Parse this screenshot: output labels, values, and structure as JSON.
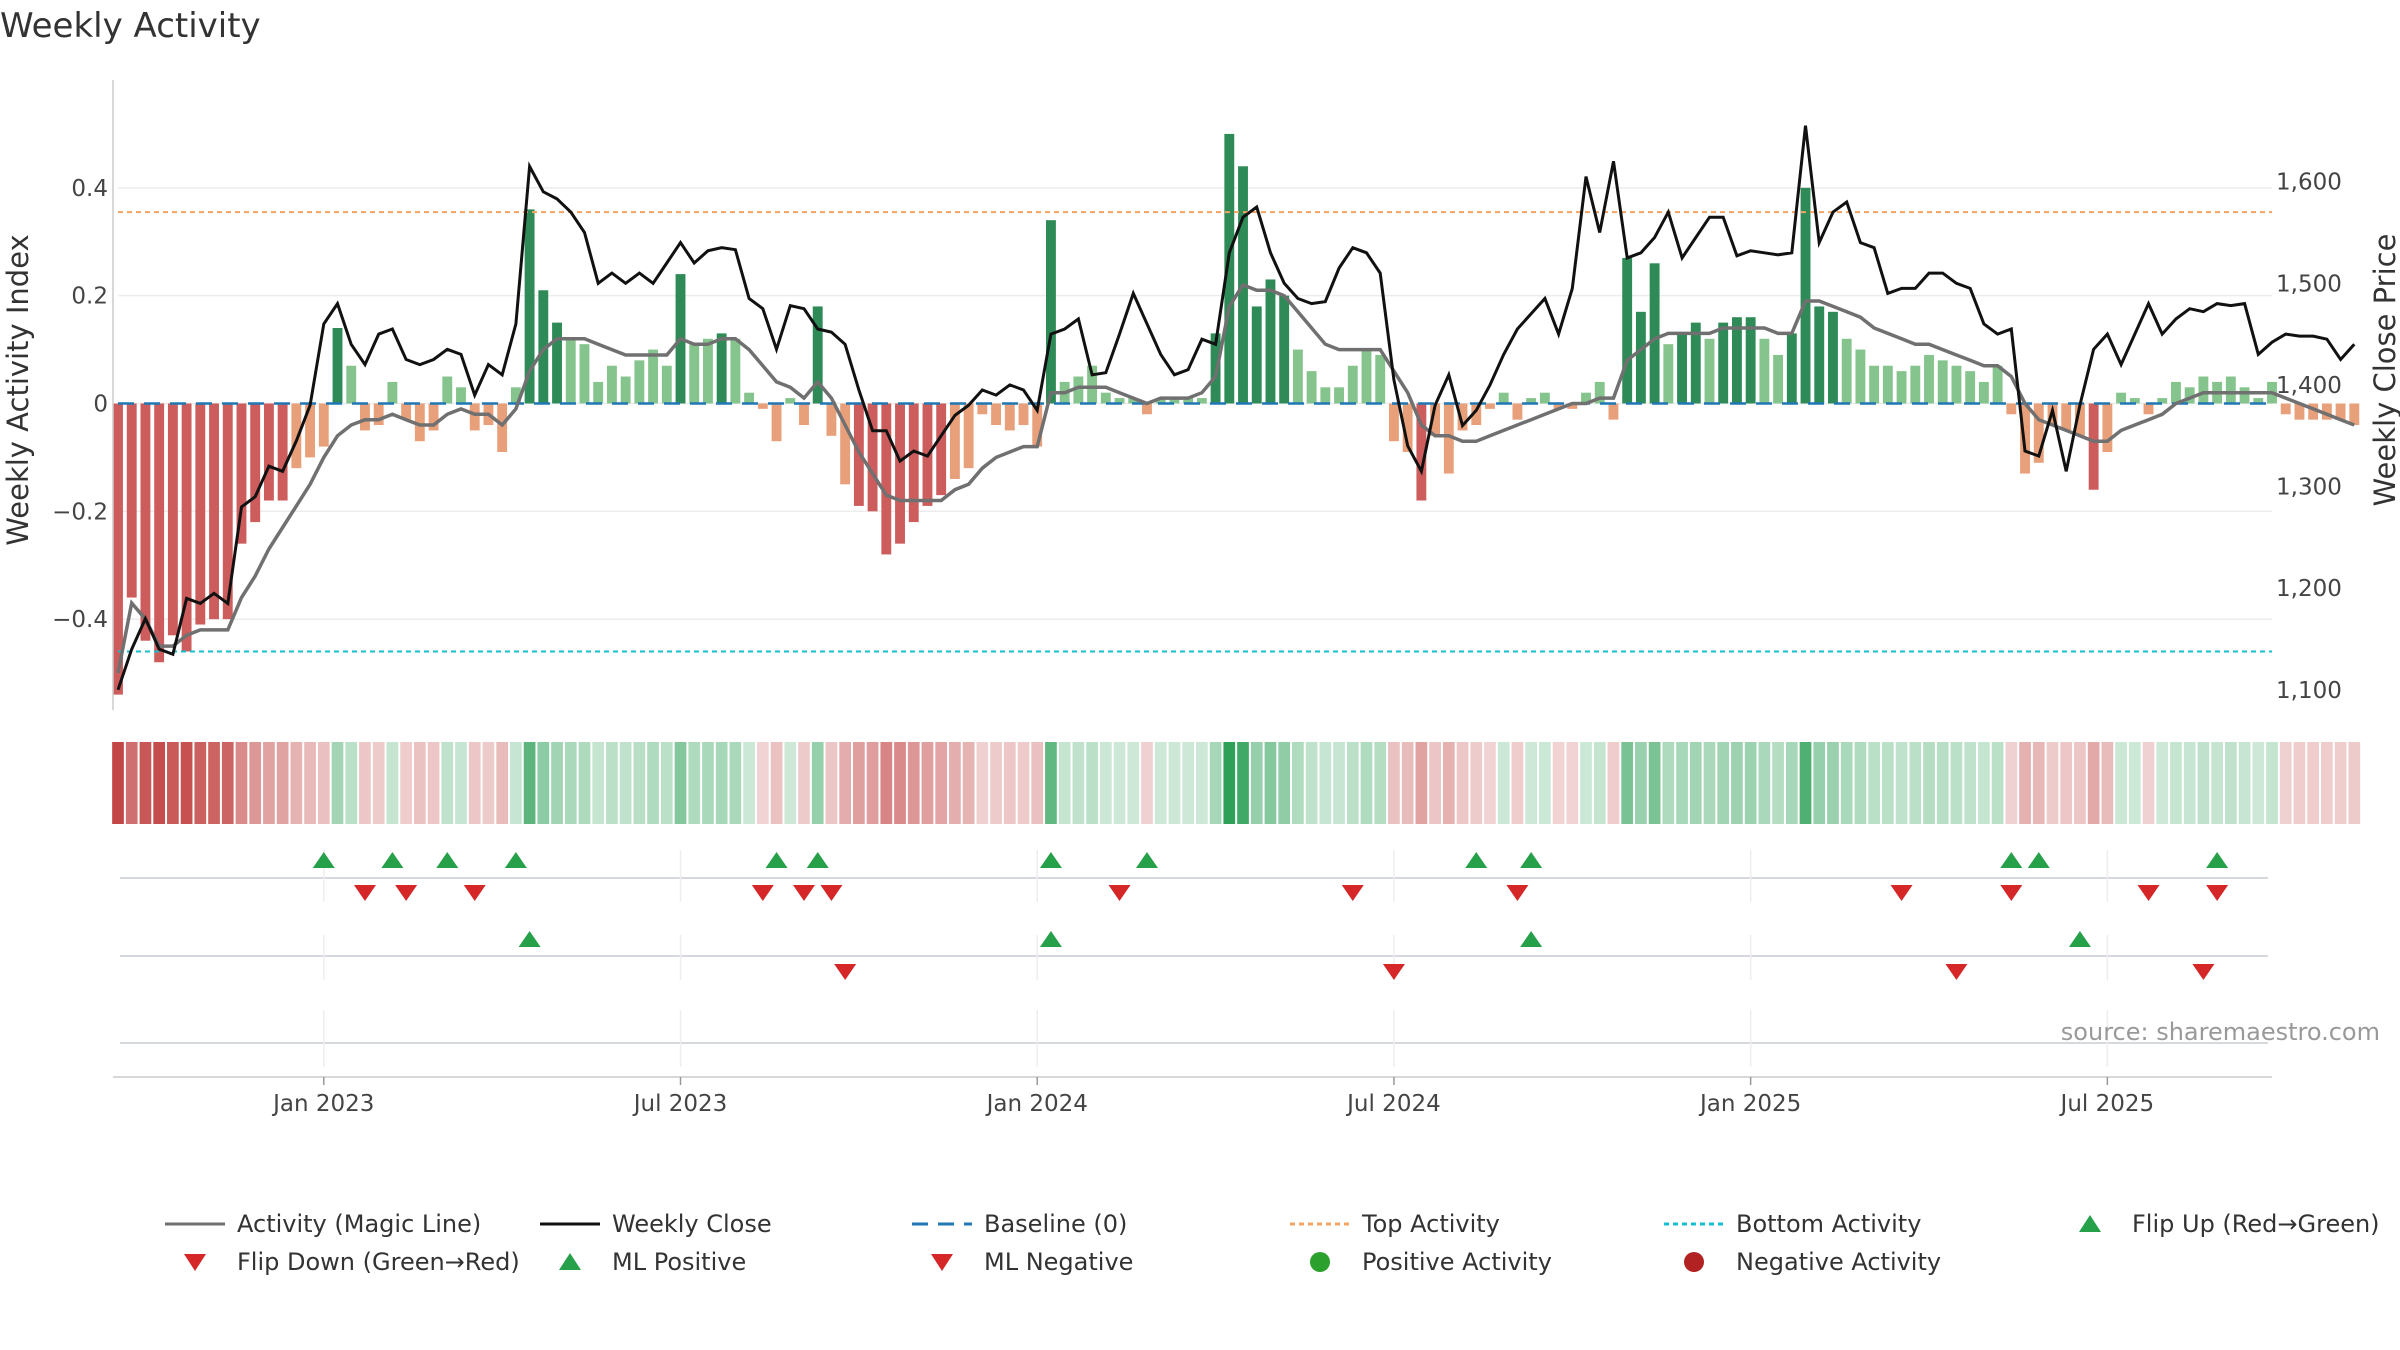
{
  "title": "Weekly Activity",
  "source": "source: sharemaestro.com",
  "colors": {
    "bar_pos_strong": "#2e8b57",
    "bar_pos_weak": "#86c48d",
    "bar_neg_strong": "#cd5c5c",
    "bar_neg_weak": "#e8a07a",
    "magic_line": "#707070",
    "close_line": "#111111",
    "baseline": "#1f77b4",
    "top_line": "#f4a460",
    "bottom_line": "#17becf",
    "marker_up": "#27a04a",
    "marker_down": "#d62728",
    "pos_dot": "#2ca02c",
    "neg_dot": "#b22222"
  },
  "chart_data": {
    "type": "bar+line",
    "title": "Weekly Activity",
    "ylabel": "Weekly Activity Index",
    "y2label": "Weekly Close Price",
    "ylim": [
      -0.55,
      0.6
    ],
    "y2lim": [
      1090,
      1700
    ],
    "yticks": [
      0.4,
      0.2,
      0,
      -0.2,
      -0.4
    ],
    "ytick_labels": [
      "0.4",
      "0.2",
      "0",
      "−0.2",
      "−0.4"
    ],
    "y2ticks": [
      1600,
      1500,
      1400,
      1300,
      1200,
      1100
    ],
    "y2tick_labels": [
      "1,600",
      "1,500",
      "1,400",
      "1,300",
      "1,200",
      "1,100"
    ],
    "x_start_week": 0,
    "x_end_week": 157,
    "xticks": [
      {
        "label": "Jan 2023",
        "week": 15
      },
      {
        "label": "Jul 2023",
        "week": 41
      },
      {
        "label": "Jan 2024",
        "week": 67
      },
      {
        "label": "Jul 2024",
        "week": 93
      },
      {
        "label": "Jan 2025",
        "week": 119
      },
      {
        "label": "Jul 2025",
        "week": 145
      }
    ],
    "top_activity": 0.355,
    "bottom_activity": -0.46,
    "baseline": 0,
    "activity": [
      -0.54,
      -0.36,
      -0.44,
      -0.48,
      -0.43,
      -0.46,
      -0.41,
      -0.4,
      -0.4,
      -0.26,
      -0.22,
      -0.18,
      -0.18,
      -0.12,
      -0.1,
      -0.08,
      0.14,
      0.07,
      -0.05,
      -0.04,
      0.04,
      -0.03,
      -0.07,
      -0.05,
      0.05,
      0.03,
      -0.05,
      -0.04,
      -0.09,
      0.03,
      0.36,
      0.21,
      0.15,
      0.12,
      0.11,
      0.04,
      0.07,
      0.05,
      0.08,
      0.1,
      0.07,
      0.24,
      0.11,
      0.12,
      0.13,
      0.12,
      0.02,
      -0.01,
      -0.07,
      0.01,
      -0.04,
      0.18,
      -0.06,
      -0.15,
      -0.19,
      -0.2,
      -0.28,
      -0.26,
      -0.22,
      -0.19,
      -0.17,
      -0.14,
      -0.12,
      -0.02,
      -0.04,
      -0.05,
      -0.04,
      -0.08,
      0.34,
      0.04,
      0.05,
      0.07,
      0.02,
      0.01,
      0.01,
      -0.02,
      0.01,
      0.01,
      0.01,
      0.01,
      0.13,
      0.5,
      0.44,
      0.18,
      0.23,
      0.2,
      0.1,
      0.06,
      0.03,
      0.03,
      0.07,
      0.1,
      0.09,
      -0.07,
      -0.09,
      -0.18,
      -0.06,
      -0.13,
      -0.05,
      -0.04,
      -0.01,
      0.02,
      -0.03,
      0.01,
      0.02,
      -0.01,
      -0.01,
      0.02,
      0.04,
      -0.03,
      0.27,
      0.17,
      0.26,
      0.11,
      0.13,
      0.15,
      0.12,
      0.15,
      0.16,
      0.16,
      0.12,
      0.09,
      0.13,
      0.4,
      0.18,
      0.17,
      0.12,
      0.1,
      0.07,
      0.07,
      0.06,
      0.07,
      0.09,
      0.08,
      0.07,
      0.06,
      0.04,
      0.07,
      -0.02,
      -0.13,
      -0.11,
      -0.04,
      -0.05,
      -0.06,
      -0.16,
      -0.09,
      0.02,
      0.01,
      -0.02,
      0.01,
      0.04,
      0.03,
      0.05,
      0.04,
      0.05,
      0.03,
      0.01,
      0.04,
      -0.02,
      -0.03,
      -0.03,
      -0.03,
      -0.03,
      -0.04
    ],
    "magic_line": [
      -0.5,
      -0.37,
      -0.4,
      -0.45,
      -0.45,
      -0.43,
      -0.42,
      -0.42,
      -0.42,
      -0.36,
      -0.32,
      -0.27,
      -0.23,
      -0.19,
      -0.15,
      -0.1,
      -0.06,
      -0.04,
      -0.03,
      -0.03,
      -0.02,
      -0.03,
      -0.04,
      -0.04,
      -0.02,
      -0.01,
      -0.02,
      -0.02,
      -0.04,
      -0.01,
      0.06,
      0.1,
      0.12,
      0.12,
      0.12,
      0.11,
      0.1,
      0.09,
      0.09,
      0.09,
      0.09,
      0.12,
      0.11,
      0.11,
      0.12,
      0.12,
      0.1,
      0.07,
      0.04,
      0.03,
      0.01,
      0.04,
      0.01,
      -0.04,
      -0.09,
      -0.13,
      -0.17,
      -0.18,
      -0.18,
      -0.18,
      -0.18,
      -0.16,
      -0.15,
      -0.12,
      -0.1,
      -0.09,
      -0.08,
      -0.08,
      0.02,
      0.02,
      0.03,
      0.03,
      0.03,
      0.02,
      0.01,
      0.0,
      0.01,
      0.01,
      0.01,
      0.02,
      0.05,
      0.18,
      0.22,
      0.21,
      0.21,
      0.2,
      0.17,
      0.14,
      0.11,
      0.1,
      0.1,
      0.1,
      0.1,
      0.06,
      0.02,
      -0.04,
      -0.06,
      -0.06,
      -0.07,
      -0.07,
      -0.06,
      -0.05,
      -0.04,
      -0.03,
      -0.02,
      -0.01,
      0.0,
      0.0,
      0.01,
      0.01,
      0.08,
      0.1,
      0.12,
      0.13,
      0.13,
      0.13,
      0.13,
      0.14,
      0.14,
      0.14,
      0.14,
      0.13,
      0.13,
      0.19,
      0.19,
      0.18,
      0.17,
      0.16,
      0.14,
      0.13,
      0.12,
      0.11,
      0.11,
      0.1,
      0.09,
      0.08,
      0.07,
      0.07,
      0.05,
      0.0,
      -0.03,
      -0.04,
      -0.05,
      -0.06,
      -0.07,
      -0.07,
      -0.05,
      -0.04,
      -0.03,
      -0.02,
      0.0,
      0.01,
      0.02,
      0.02,
      0.02,
      0.02,
      0.02,
      0.02,
      0.01,
      0.0,
      -0.01,
      -0.02,
      -0.03,
      -0.04
    ],
    "weekly_close": [
      1100,
      1140,
      1170,
      1140,
      1135,
      1190,
      1185,
      1195,
      1185,
      1280,
      1290,
      1320,
      1315,
      1345,
      1380,
      1460,
      1480,
      1440,
      1420,
      1450,
      1455,
      1425,
      1420,
      1425,
      1435,
      1430,
      1390,
      1420,
      1410,
      1460,
      1615,
      1590,
      1583,
      1570,
      1550,
      1500,
      1510,
      1500,
      1510,
      1500,
      1520,
      1540,
      1520,
      1532,
      1535,
      1533,
      1485,
      1475,
      1435,
      1478,
      1475,
      1455,
      1452,
      1440,
      1395,
      1355,
      1355,
      1325,
      1335,
      1330,
      1350,
      1370,
      1380,
      1395,
      1390,
      1400,
      1395,
      1375,
      1450,
      1455,
      1465,
      1410,
      1412,
      1450,
      1490,
      1460,
      1430,
      1410,
      1415,
      1445,
      1440,
      1530,
      1565,
      1575,
      1530,
      1500,
      1485,
      1480,
      1482,
      1515,
      1535,
      1530,
      1510,
      1405,
      1340,
      1315,
      1380,
      1410,
      1360,
      1375,
      1400,
      1430,
      1455,
      1470,
      1485,
      1450,
      1495,
      1605,
      1550,
      1620,
      1525,
      1530,
      1545,
      1570,
      1525,
      1545,
      1565,
      1565,
      1527,
      1532,
      1530,
      1528,
      1530,
      1655,
      1540,
      1570,
      1580,
      1540,
      1535,
      1490,
      1495,
      1495,
      1510,
      1510,
      1500,
      1495,
      1460,
      1450,
      1455,
      1335,
      1330,
      1375,
      1315,
      1380,
      1435,
      1450,
      1420,
      1450,
      1480,
      1450,
      1465,
      1475,
      1472,
      1480,
      1478,
      1480,
      1430,
      1442,
      1450,
      1448,
      1448,
      1445,
      1425,
      1440
    ],
    "flip_up_weeks": [
      15,
      20,
      24,
      29,
      48,
      51,
      68,
      75,
      99,
      103,
      138,
      140,
      153
    ],
    "flip_down_weeks": [
      18,
      21,
      26,
      47,
      50,
      52,
      73,
      90,
      102,
      130,
      138,
      148,
      153
    ],
    "ml_positive_weeks": [
      30,
      68,
      103,
      143
    ],
    "ml_negative_weeks": [
      53,
      93,
      134,
      152
    ]
  },
  "legend": [
    {
      "label": "Activity (Magic Line)",
      "kind": "line",
      "color": "#707070",
      "dash": ""
    },
    {
      "label": "Weekly Close",
      "kind": "line",
      "color": "#111111",
      "dash": ""
    },
    {
      "label": "Baseline (0)",
      "kind": "line",
      "color": "#1f77b4",
      "dash": "16,10"
    },
    {
      "label": "Top Activity",
      "kind": "line",
      "color": "#f4a460",
      "dash": "5,4"
    },
    {
      "label": "Bottom Activity",
      "kind": "line",
      "color": "#17becf",
      "dash": "5,4"
    },
    {
      "label": "Flip Up (Red→Green)",
      "kind": "tri-up",
      "color": "#27a04a"
    },
    {
      "label": "Flip Down (Green→Red)",
      "kind": "tri-down",
      "color": "#d62728"
    },
    {
      "label": "ML Positive",
      "kind": "tri-up",
      "color": "#27a04a"
    },
    {
      "label": "ML Negative",
      "kind": "tri-down",
      "color": "#d62728"
    },
    {
      "label": "Positive Activity",
      "kind": "dot",
      "color": "#2ca02c"
    },
    {
      "label": "Negative Activity",
      "kind": "dot",
      "color": "#b22222"
    }
  ]
}
